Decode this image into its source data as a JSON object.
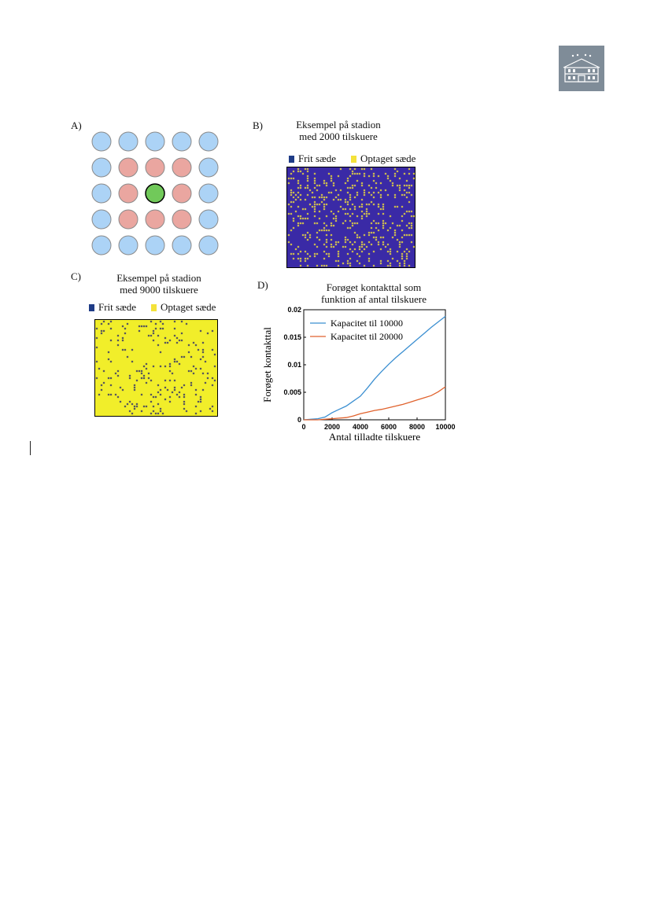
{
  "colors": {
    "neighbor_blue": "#acd3f6",
    "neighbor_red": "#eaa6a0",
    "center_green": "#71c95a",
    "free_seat": "#1f3c87",
    "occupied_seat": "#f4e23a",
    "stadium_b_bg": "#3a2aa6",
    "stadium_c_bg": "#f1ee2a",
    "line_10000": "#3b8fd1",
    "line_20000": "#e0622d",
    "logo_bg": "#7f8c98"
  },
  "panelA": {
    "label": "A)",
    "grid": [
      [
        "b",
        "b",
        "b",
        "b",
        "b"
      ],
      [
        "b",
        "r",
        "r",
        "r",
        "b"
      ],
      [
        "b",
        "r",
        "g",
        "r",
        "b"
      ],
      [
        "b",
        "r",
        "r",
        "r",
        "b"
      ],
      [
        "b",
        "b",
        "b",
        "b",
        "b"
      ]
    ]
  },
  "panelB": {
    "label": "B)",
    "title_line1": "Eksempel på stadion",
    "title_line2": "med 2000 tilskuere",
    "legend_free": "Frit sæde",
    "legend_occupied": "Optaget sæde",
    "occupied_fraction": 0.2
  },
  "panelC": {
    "label": "C)",
    "title_line1": "Eksempel på stadion",
    "title_line2": "med 9000 tilskuere",
    "legend_free": "Frit sæde",
    "legend_occupied": "Optaget sæde",
    "occupied_fraction": 0.9
  },
  "panelD": {
    "label": "D)",
    "title_line1": "Forøget kontakttal som",
    "title_line2": "funktion af antal tilskuere"
  },
  "chart_data": {
    "type": "line",
    "title": "Forøget kontakttal som funktion af antal tilskuere",
    "xlabel": "Antal tilladte tilskuere",
    "ylabel": "Forøget kontakttal",
    "xlim": [
      0,
      10000
    ],
    "ylim": [
      0,
      0.02
    ],
    "xticks": [
      0,
      2000,
      4000,
      6000,
      8000,
      10000
    ],
    "yticks": [
      0,
      0.005,
      0.01,
      0.015,
      0.02
    ],
    "ytick_labels": [
      "0",
      "0.005",
      "0.01",
      "0.015",
      "0.02"
    ],
    "legend_position": "top-left",
    "grid": false,
    "series": [
      {
        "name": "Kapacitet til 10000",
        "color": "#3b8fd1",
        "x": [
          0,
          500,
          1000,
          1500,
          2000,
          2500,
          3000,
          3500,
          4000,
          4500,
          5000,
          5500,
          6000,
          6500,
          7000,
          7500,
          8000,
          8500,
          9000,
          9500,
          10000
        ],
        "y": [
          0,
          0.0001,
          0.0002,
          0.0005,
          0.0013,
          0.0019,
          0.0025,
          0.0034,
          0.0043,
          0.0058,
          0.0074,
          0.0088,
          0.0101,
          0.0113,
          0.0124,
          0.0135,
          0.0146,
          0.0157,
          0.0168,
          0.0178,
          0.0188
        ]
      },
      {
        "name": "Kapacitet til 20000",
        "color": "#e0622d",
        "x": [
          0,
          500,
          1000,
          1500,
          2000,
          2500,
          3000,
          3500,
          4000,
          4500,
          5000,
          5500,
          6000,
          6500,
          7000,
          7500,
          8000,
          8500,
          9000,
          9500,
          10000
        ],
        "y": [
          0,
          0,
          0,
          0.0001,
          0.0002,
          0.0003,
          0.0004,
          0.0007,
          0.0011,
          0.0014,
          0.0017,
          0.0019,
          0.0022,
          0.0025,
          0.0028,
          0.0032,
          0.0036,
          0.004,
          0.0044,
          0.0051,
          0.006
        ]
      }
    ]
  }
}
